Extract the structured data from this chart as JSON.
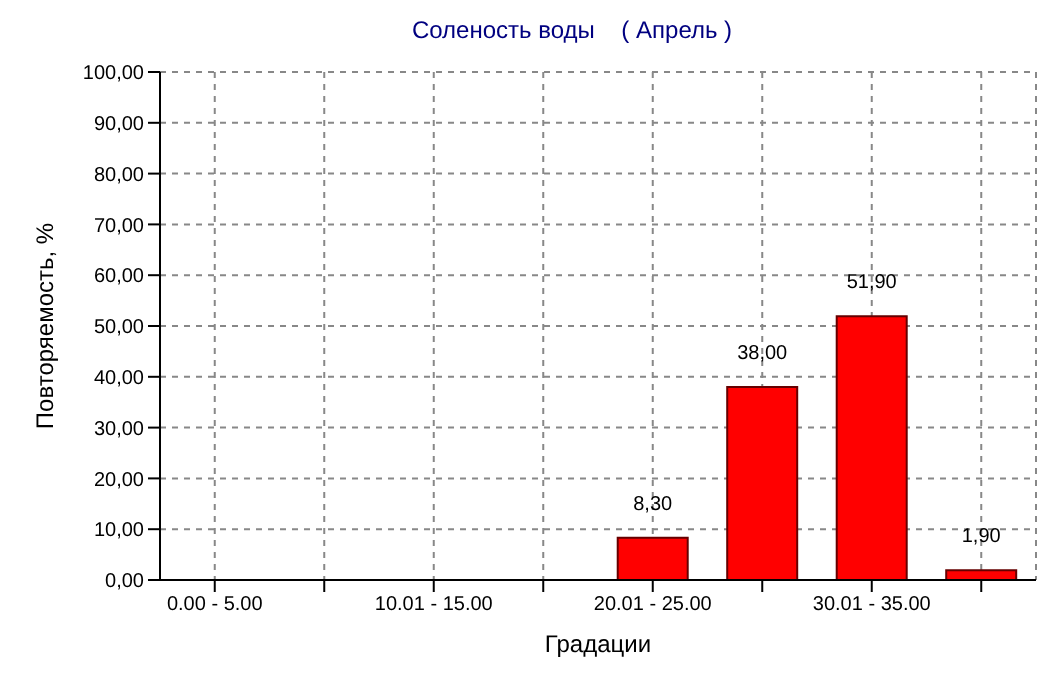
{
  "chart_data": {
    "type": "bar",
    "title": "Соленость воды    ( Апрель )",
    "xlabel": "Градации",
    "ylabel": "Повторяемость, %",
    "categories": [
      "0.00 - 5.00",
      null,
      "10.01 - 15.00",
      null,
      "20.01 - 25.00",
      null,
      "30.01 - 35.00",
      null
    ],
    "values": [
      0,
      0,
      0,
      0,
      8.3,
      38,
      51.9,
      1.9
    ],
    "value_labels": [
      null,
      null,
      null,
      null,
      "8,30",
      "38,00",
      "51,90",
      "1,90"
    ],
    "color": "#ff0000",
    "ylim": [
      0,
      100
    ],
    "yticks": [
      {
        "value": 0,
        "label": "0,00"
      },
      {
        "value": 10,
        "label": "10,00"
      },
      {
        "value": 20,
        "label": "20,00"
      },
      {
        "value": 30,
        "label": "30,00"
      },
      {
        "value": 40,
        "label": "40,00"
      },
      {
        "value": 50,
        "label": "50,00"
      },
      {
        "value": 60,
        "label": "60,00"
      },
      {
        "value": 70,
        "label": "70,00"
      },
      {
        "value": 80,
        "label": "80,00"
      },
      {
        "value": 90,
        "label": "90,00"
      },
      {
        "value": 100,
        "label": "100,00"
      }
    ],
    "grid": true
  }
}
